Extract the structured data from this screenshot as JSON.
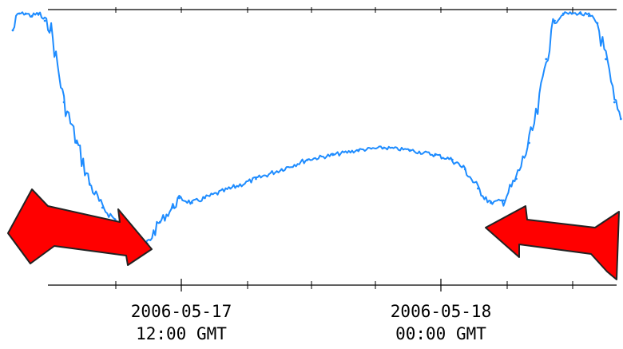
{
  "chart_data": {
    "type": "line",
    "title": "",
    "xlabel": "",
    "ylabel": "",
    "x_tick_labels": [
      {
        "date": "2006-05-17",
        "time": "12:00 GMT",
        "x": "2006-05-17T12:00"
      },
      {
        "date": "2006-05-18",
        "time": "00:00 GMT",
        "x": "2006-05-18T00:00"
      }
    ],
    "xlim": [
      "2006-05-17T06:00",
      "2006-05-18T06:20"
    ],
    "ylim": [
      0,
      100
    ],
    "grid": false,
    "legend": "none",
    "series": [
      {
        "color": "#1e8cff",
        "x": [
          "2006-05-17T06:30",
          "2006-05-17T06:45",
          "2006-05-17T07:00",
          "2006-05-17T07:15",
          "2006-05-17T07:30",
          "2006-05-17T07:45",
          "2006-05-17T08:00",
          "2006-05-17T08:30",
          "2006-05-17T09:00",
          "2006-05-17T09:30",
          "2006-05-17T10:00",
          "2006-05-17T10:30",
          "2006-05-17T11:00",
          "2006-05-17T11:15",
          "2006-05-17T11:30",
          "2006-05-17T11:45",
          "2006-05-17T12:15",
          "2006-05-17T12:45",
          "2006-05-17T13:00",
          "2006-05-17T13:30",
          "2006-05-17T14:00",
          "2006-05-17T15:00",
          "2006-05-17T16:00",
          "2006-05-17T17:00",
          "2006-05-17T18:00",
          "2006-05-17T19:00",
          "2006-05-17T20:00",
          "2006-05-17T21:00",
          "2006-05-17T22:00",
          "2006-05-17T23:00",
          "2006-05-17T23:40",
          "2006-05-18T00:10",
          "2006-05-18T00:40",
          "2006-05-18T01:10",
          "2006-05-18T01:40",
          "2006-05-18T02:10",
          "2006-05-18T02:40",
          "2006-05-18T03:00",
          "2006-05-18T03:20",
          "2006-05-18T03:40",
          "2006-05-18T04:00",
          "2006-05-18T04:20",
          "2006-05-18T04:40",
          "2006-05-18T05:00",
          "2006-05-18T05:20",
          "2006-05-18T05:40",
          "2006-05-18T06:00",
          "2006-05-18T06:15"
        ],
        "y": [
          92,
          99,
          99,
          98,
          99,
          96,
          92,
          62,
          45,
          28,
          18,
          13,
          7,
          3,
          1,
          3,
          12,
          18,
          22,
          20,
          22,
          26,
          30,
          34,
          38,
          40,
          42,
          43,
          42,
          40,
          38,
          34,
          26,
          20,
          21,
          30,
          45,
          58,
          80,
          96,
          99,
          99,
          99,
          98,
          95,
          80,
          62,
          55
        ]
      }
    ]
  }
}
